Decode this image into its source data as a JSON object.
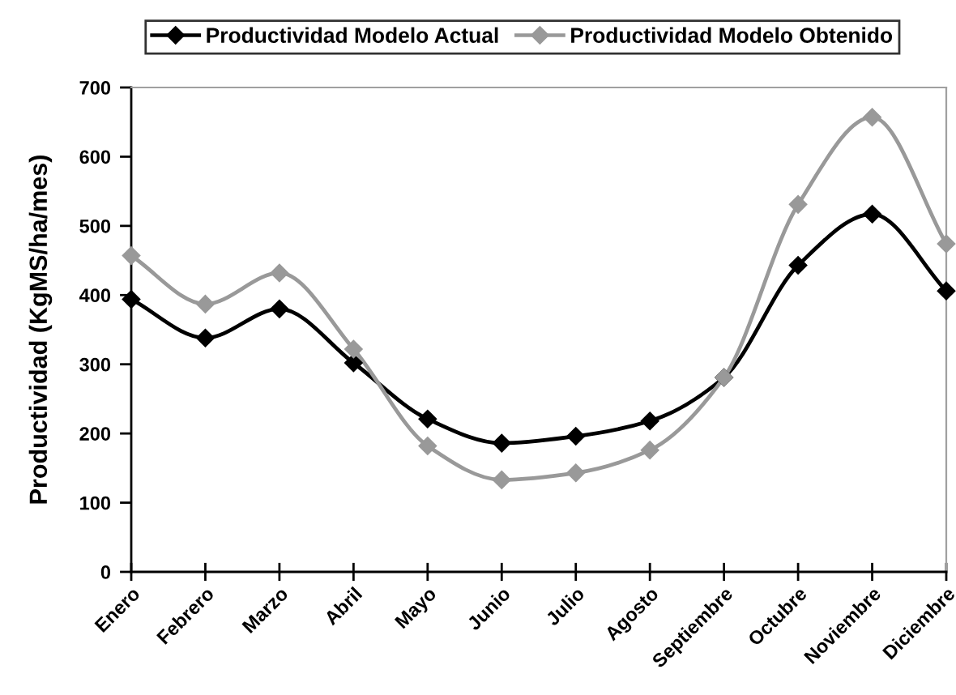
{
  "chart_data": {
    "type": "line",
    "categories": [
      "Enero",
      "Febrero",
      "Marzo",
      "Abril",
      "Mayo",
      "Junio",
      "Julio",
      "Agosto",
      "Septiembre",
      "Octubre",
      "Noviembre",
      "Diciembre"
    ],
    "series": [
      {
        "name": "Productividad Modelo Actual",
        "color": "#000000",
        "values": [
          394,
          338,
          380,
          302,
          221,
          186,
          196,
          218,
          281,
          443,
          517,
          406
        ]
      },
      {
        "name": "Productividad Modelo Obtenido",
        "color": "#999999",
        "values": [
          457,
          387,
          432,
          322,
          182,
          133,
          143,
          176,
          281,
          531,
          657,
          474
        ]
      }
    ],
    "ylabel": "Productividad (KgMS/ha/mes)",
    "ylim": [
      0,
      700
    ],
    "yticks": [
      0,
      100,
      200,
      300,
      400,
      500,
      600,
      700
    ],
    "legend": "top",
    "marker": "diamond",
    "line_style": "solid"
  }
}
